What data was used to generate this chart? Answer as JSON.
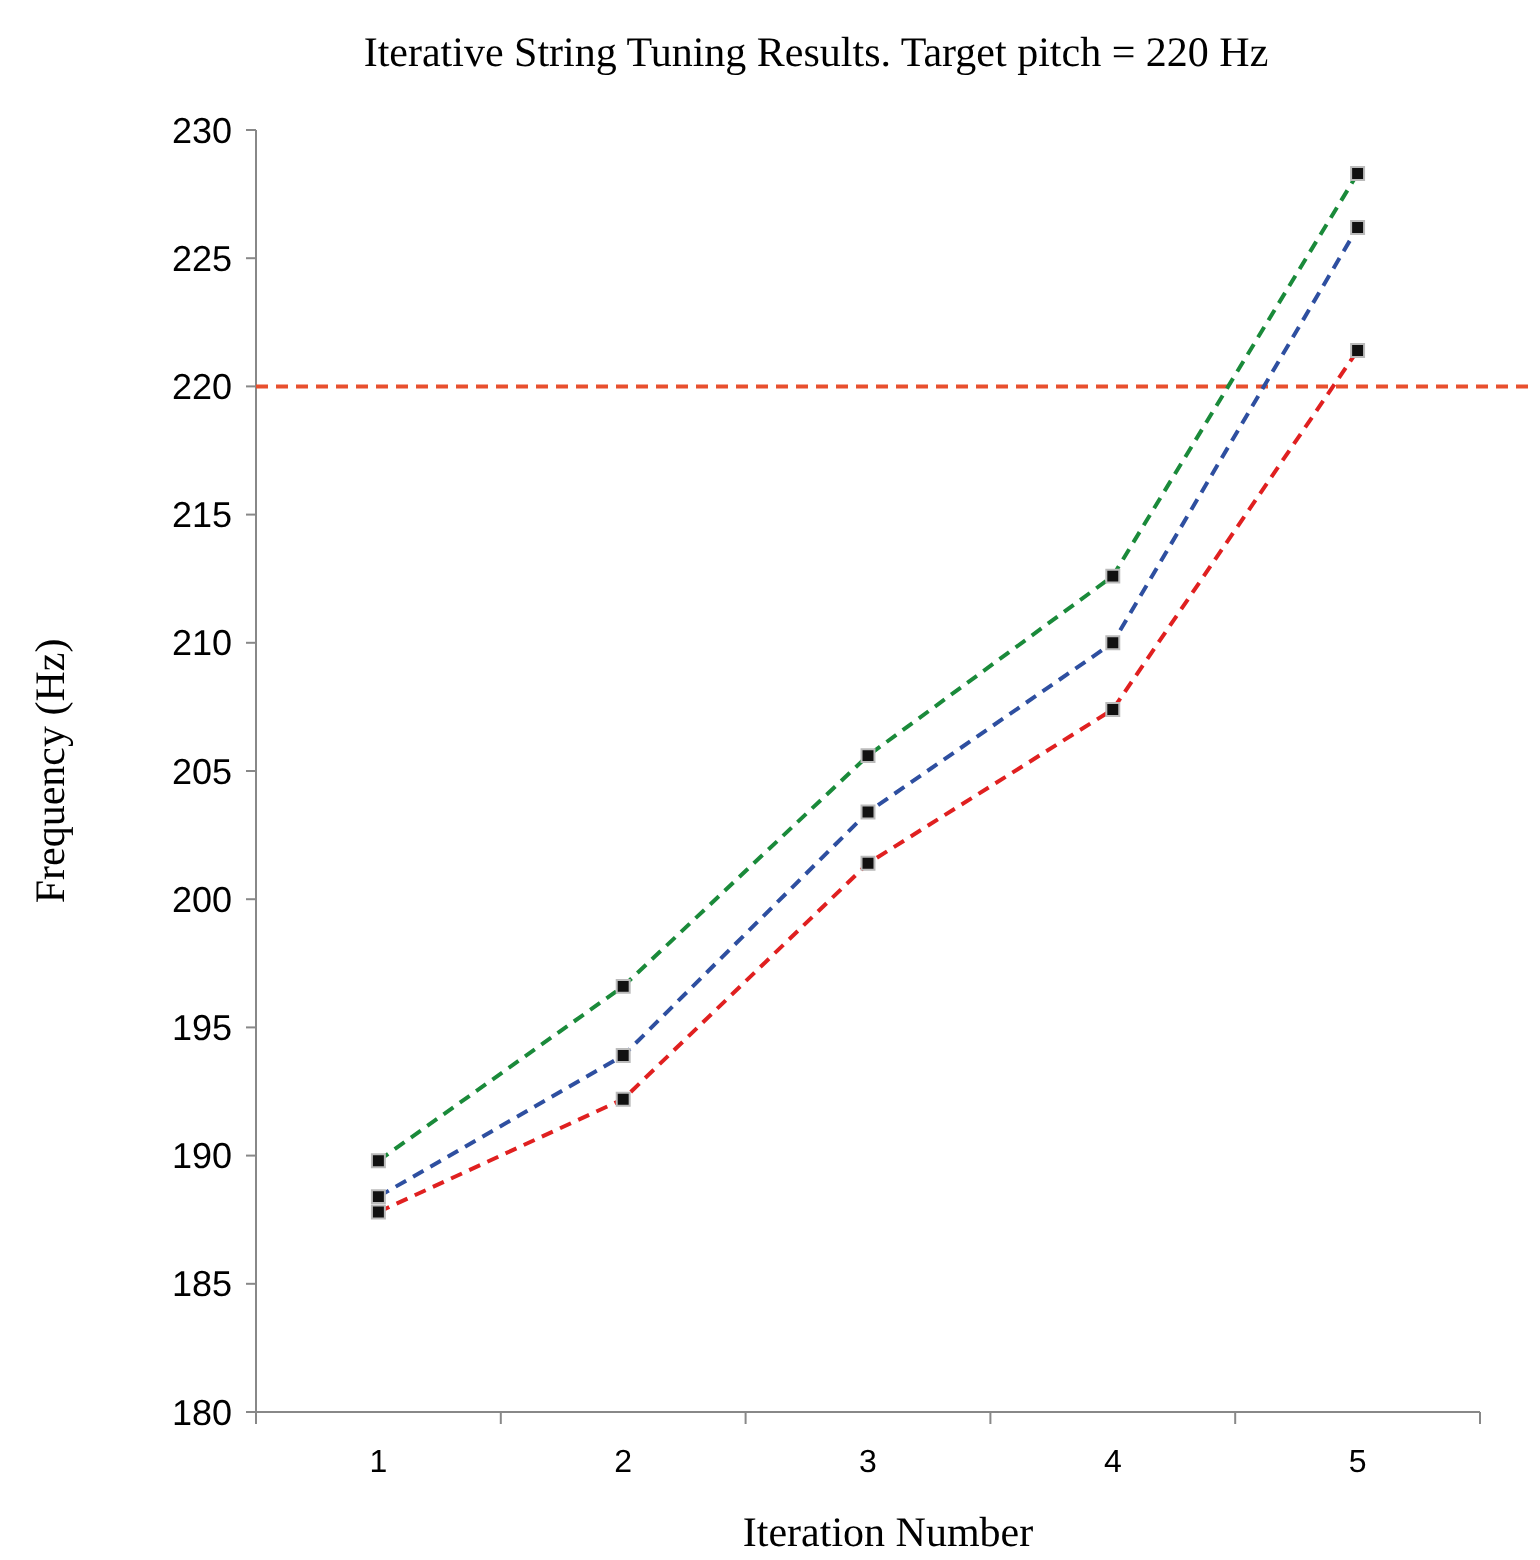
{
  "chart_data": {
    "type": "line",
    "title": "Iterative String Tuning Results. Target pitch = 220 Hz",
    "xlabel": "Iteration Number",
    "ylabel": "Frequency (Hz)",
    "categories": [
      "1",
      "2",
      "3",
      "4",
      "5"
    ],
    "series": [
      {
        "color": "#1a8a3a",
        "values": [
          189.8,
          196.6,
          205.6,
          212.6,
          228.3
        ]
      },
      {
        "color": "#2e4fa0",
        "values": [
          188.4,
          193.9,
          203.4,
          210.0,
          226.2
        ]
      },
      {
        "color": "#e02020",
        "values": [
          187.8,
          192.2,
          201.4,
          207.4,
          221.4
        ]
      }
    ],
    "ylim": [
      180,
      230
    ],
    "yticks": [
      180,
      185,
      190,
      195,
      200,
      205,
      210,
      215,
      220,
      225,
      230
    ],
    "ref_lines": [
      {
        "axis": "y",
        "value": 220,
        "color": "#e8502e",
        "line_style": "dashed"
      }
    ],
    "marker": "square",
    "line_style": "dashed",
    "grid": false
  }
}
